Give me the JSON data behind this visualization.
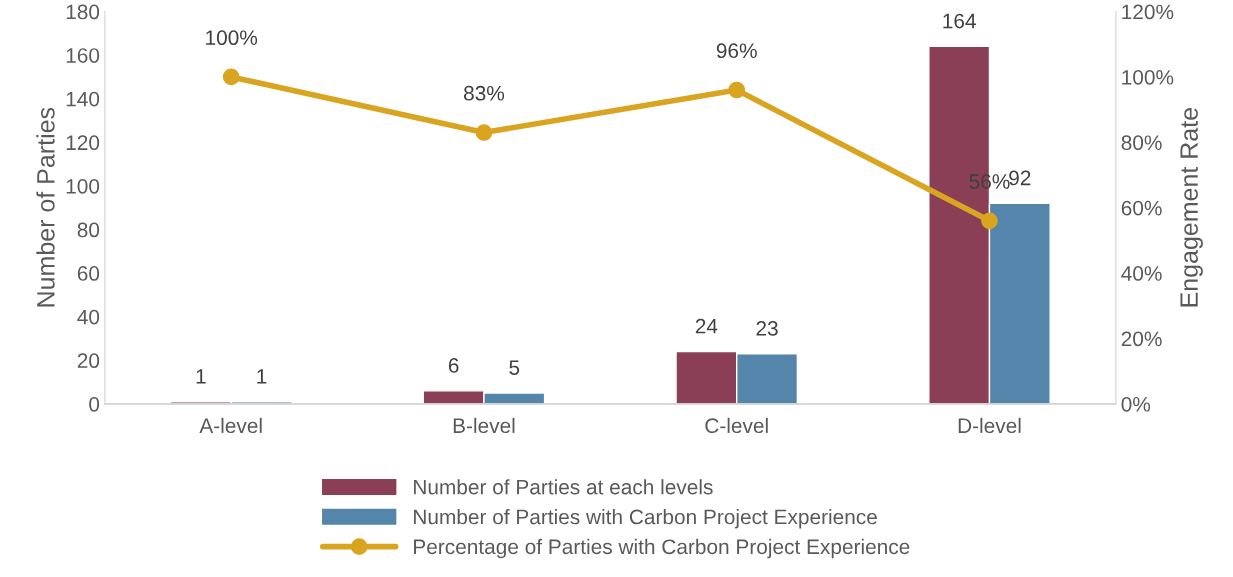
{
  "chart_data": {
    "type": "bar",
    "categories": [
      "A-level",
      "B-level",
      "C-level",
      "D-level"
    ],
    "series": [
      {
        "name": "Number of Parties at each levels",
        "color": "#8b3f57",
        "values": [
          1,
          6,
          24,
          164
        ]
      },
      {
        "name": "Number of Parties with Carbon Project Experience",
        "color": "#5485aa",
        "values": [
          1,
          5,
          23,
          92
        ]
      },
      {
        "name": "Percentage of Parties with Carbon Project Experience",
        "type": "line",
        "axis": "y2",
        "color": "#d9a521",
        "values": [
          100,
          83,
          96,
          56
        ],
        "value_labels": [
          "100%",
          "83%",
          "96%",
          "56%"
        ]
      }
    ],
    "ylabel": "Number of Parties",
    "y2label": "Engagement Rate",
    "ylim": [
      0,
      180
    ],
    "yticks": [
      0,
      20,
      40,
      60,
      80,
      100,
      120,
      140,
      160,
      180
    ],
    "y2lim": [
      0,
      120
    ],
    "y2ticks": [
      {
        "value": 0,
        "label": "0%"
      },
      {
        "value": 20,
        "label": "20%"
      },
      {
        "value": 40,
        "label": "40%"
      },
      {
        "value": 60,
        "label": "60%"
      },
      {
        "value": 80,
        "label": "80%"
      },
      {
        "value": 100,
        "label": "100%"
      },
      {
        "value": 120,
        "label": "120%"
      }
    ],
    "data_labels": true,
    "marker": "circle",
    "line_style": "solid",
    "legend": "bottom",
    "grid": false
  }
}
